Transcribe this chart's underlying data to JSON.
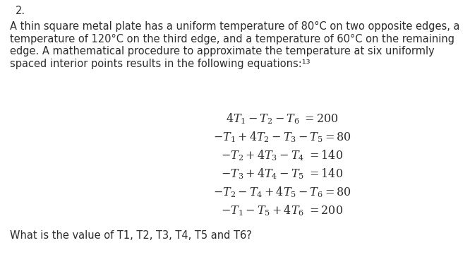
{
  "background_color": "#ffffff",
  "text_color": "#2d2d2d",
  "number_label": "2.",
  "number_fontsize": 10.5,
  "para_lines": [
    "A thin square metal plate has a uniform temperature of 80°C on two opposite edges, a",
    "temperature of 120°C on the third edge, and a temperature of 60°C on the remaining",
    "edge. A mathematical procedure to approximate the temperature at six uniformly",
    "spaced interior points results in the following equations:¹³"
  ],
  "para_fontsize": 10.5,
  "eq_lines": [
    "$4T_1 - T_2 - T_6 \\ = 200$",
    "$-T_1 + 4T_2 - T_3 - T_5 = 80$",
    "$-T_2 + 4T_3 - T_4 \\ = 140$",
    "$-T_3 + 4T_4 - T_5 \\ = 140$",
    "$-T_2 - T_4 + 4T_5 - T_6 = 80$",
    "$-T_1 - T_5 + 4T_6 \\ = 200$"
  ],
  "eq_fontsize": 11.5,
  "question": "What is the value of T1, T2, T3, T4, T5 and T6?",
  "question_fontsize": 10.5,
  "fig_width": 6.66,
  "fig_height": 3.71,
  "dpi": 100
}
